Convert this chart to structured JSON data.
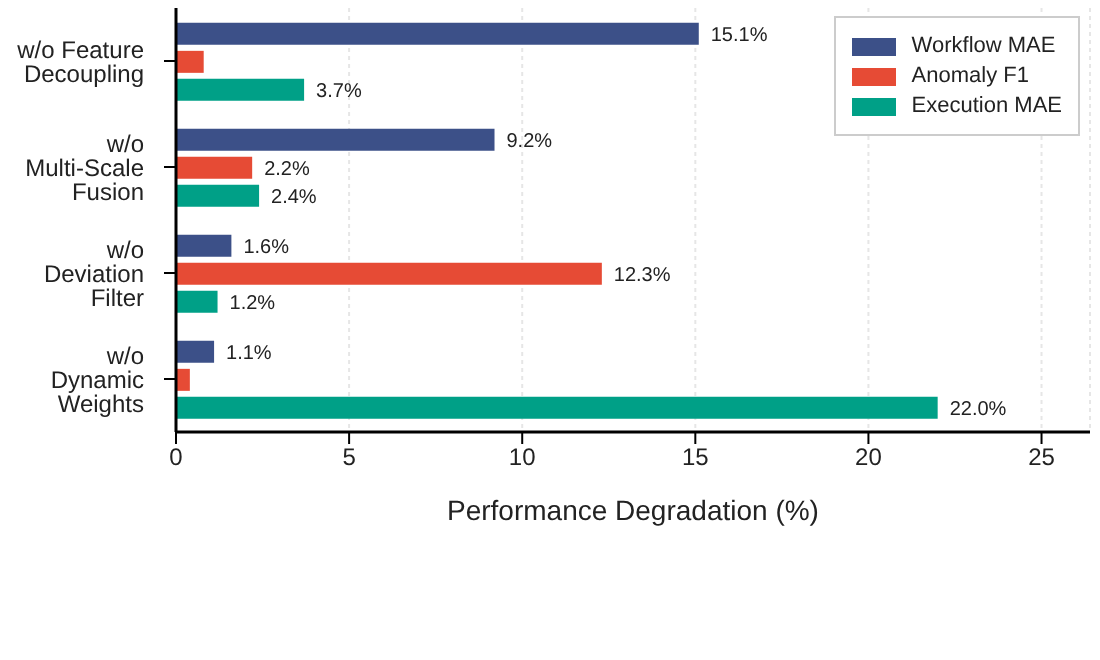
{
  "chart_data": {
    "type": "bar",
    "orientation": "horizontal",
    "xlabel": "Performance Degradation (%)",
    "categories": [
      "w/o Feature Decoupling",
      "w/o Multi-Scale Fusion",
      "w/o Deviation Filter",
      "w/o Dynamic Weights"
    ],
    "series": [
      {
        "name": "Workflow MAE",
        "color": "#3c5088",
        "values": [
          15.1,
          9.2,
          1.6,
          1.1
        ],
        "value_labels": [
          "15.1%",
          "9.2%",
          "1.6%",
          "1.1%"
        ]
      },
      {
        "name": "Anomaly F1",
        "color": "#e64b35",
        "values": [
          0.8,
          2.2,
          12.3,
          0.4
        ],
        "value_labels": [
          null,
          "2.2%",
          "12.3%",
          null
        ]
      },
      {
        "name": "Execution MAE",
        "color": "#00a087",
        "values": [
          3.7,
          2.4,
          1.2,
          22.0
        ],
        "value_labels": [
          "3.7%",
          "2.4%",
          "1.2%",
          "22.0%"
        ]
      }
    ],
    "xlim": [
      0,
      26.4
    ],
    "xticks": [
      0,
      5,
      10,
      15,
      20,
      25
    ],
    "grid": "x",
    "legend": "top right"
  }
}
